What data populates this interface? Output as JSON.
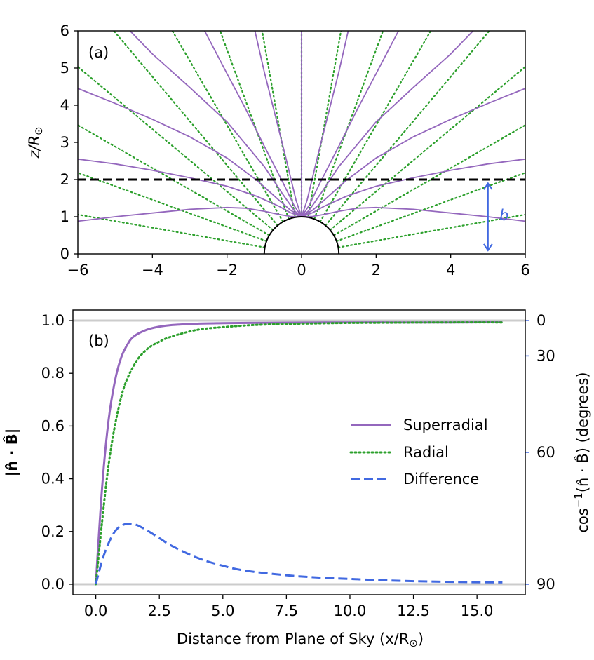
{
  "colors": {
    "superradial": "#9467bd",
    "radial": "#2ca02c",
    "difference": "#4169e1",
    "gray": "#cccccc",
    "black": "#000000"
  },
  "chart_data": [
    {
      "panel": "(a)",
      "type": "line",
      "ylabel_main": "z/R",
      "ylabel_sub": "⊙",
      "xlim": [
        -6,
        6
      ],
      "ylim": [
        0,
        6
      ],
      "xticks": [
        "−6",
        "−4",
        "−2",
        "0",
        "2",
        "4",
        "6"
      ],
      "yticks": [
        "0",
        "1",
        "2",
        "3",
        "4",
        "5",
        "6"
      ],
      "xtick_values": [
        -6,
        -4,
        -2,
        0,
        2,
        4,
        6
      ],
      "ytick_values": [
        0,
        1,
        2,
        3,
        4,
        5,
        6
      ],
      "dashed_line_z": 2,
      "sun_radius": 1,
      "b_label": "b",
      "b_arrow_x": 5,
      "b_arrow_range": [
        0.02,
        1.9
      ],
      "superradial_series": [
        {
          "name": "fieldline-r1",
          "x": [
            -6,
            -5,
            -4,
            -3,
            -2,
            -1.5,
            -1,
            -0.6,
            -0.3,
            0
          ],
          "y": [
            0.88,
            1.0,
            1.1,
            1.2,
            1.25,
            1.23,
            1.15,
            1.06,
            1.01,
            1.0
          ]
        },
        {
          "name": "fieldline-r2",
          "x": [
            -6,
            -5,
            -4,
            -3,
            -2,
            -1.2,
            -0.6,
            -0.3,
            0
          ],
          "y": [
            2.55,
            2.42,
            2.25,
            2.05,
            1.82,
            1.55,
            1.28,
            1.11,
            1.0
          ]
        },
        {
          "name": "fieldline-r3",
          "x": [
            -6,
            -5,
            -4,
            -3,
            -2,
            -1.2,
            -0.6,
            -0.3,
            0
          ],
          "y": [
            4.45,
            4.05,
            3.62,
            3.15,
            2.58,
            1.98,
            1.44,
            1.18,
            1.0
          ]
        },
        {
          "name": "fieldline-r4",
          "x": [
            -4.6,
            -4,
            -3,
            -2,
            -1,
            -0.5,
            -0.2,
            0
          ],
          "y": [
            6.0,
            5.38,
            4.48,
            3.55,
            2.35,
            1.6,
            1.17,
            1.0
          ]
        },
        {
          "name": "fieldline-r5",
          "x": [
            -2.6,
            -2,
            -1.5,
            -1,
            -0.5,
            -0.2,
            0
          ],
          "y": [
            6.0,
            4.85,
            3.9,
            2.9,
            1.92,
            1.3,
            1.0
          ]
        },
        {
          "name": "fieldline-r6",
          "x": [
            -1.25,
            -1,
            -0.7,
            -0.4,
            -0.15,
            0
          ],
          "y": [
            6.0,
            4.9,
            3.7,
            2.5,
            1.45,
            1.0
          ]
        },
        {
          "name": "fieldline-r7",
          "x": [
            0,
            0
          ],
          "y": [
            1.0,
            6.0
          ]
        }
      ],
      "radial_angles_deg": [
        10,
        20,
        30,
        40,
        50,
        60,
        70,
        80,
        90,
        100,
        110,
        120,
        130,
        140,
        150,
        160,
        170
      ]
    },
    {
      "panel": "(b)",
      "type": "line",
      "xlabel_main": "Distance from Plane of Sky (x/R",
      "xlabel_sub": "⊙",
      "xlabel_end": ")",
      "ylabel_left": "|n̂ · B̂|",
      "ylabel_right_main": "cos",
      "ylabel_right_sup": "−1",
      "ylabel_right_rest": "(n̂ · B̂)  (degrees)",
      "xlim": [
        -0.9,
        16.9
      ],
      "ylim": [
        -0.04,
        1.04
      ],
      "xticks": [
        "0.0",
        "2.5",
        "5.0",
        "7.5",
        "10.0",
        "12.5",
        "15.0"
      ],
      "xtick_values": [
        0,
        2.5,
        5,
        7.5,
        10,
        12.5,
        15
      ],
      "yticks": [
        "0.0",
        "0.2",
        "0.4",
        "0.6",
        "0.8",
        "1.0"
      ],
      "ytick_values": [
        0,
        0.2,
        0.4,
        0.6,
        0.8,
        1.0
      ],
      "right_ticks": [
        "0",
        "30",
        "60",
        "90"
      ],
      "right_tick_degrees": [
        0,
        30,
        60,
        90
      ],
      "legend": [
        "Superradial",
        "Radial",
        "Difference"
      ],
      "series": [
        {
          "name": "Superradial",
          "x": [
            0,
            0.25,
            0.5,
            0.75,
            1,
            1.25,
            1.5,
            2,
            2.5,
            3,
            4,
            5,
            6,
            8,
            10,
            12,
            14,
            16
          ],
          "values": [
            0,
            0.37,
            0.62,
            0.77,
            0.86,
            0.91,
            0.94,
            0.965,
            0.977,
            0.983,
            0.988,
            0.99,
            0.991,
            0.992,
            0.993,
            0.993,
            0.993,
            0.994
          ]
        },
        {
          "name": "Radial",
          "x": [
            0,
            0.5,
            1,
            1.5,
            2,
            2.5,
            3,
            4,
            5,
            6,
            7,
            8,
            10,
            12,
            14,
            16
          ],
          "values": [
            0,
            0.45,
            0.71,
            0.83,
            0.89,
            0.92,
            0.94,
            0.965,
            0.975,
            0.982,
            0.986,
            0.988,
            0.991,
            0.992,
            0.993,
            0.993
          ]
        },
        {
          "name": "Difference",
          "x": [
            0,
            0.25,
            0.5,
            0.75,
            1,
            1.3,
            1.6,
            2,
            2.5,
            3,
            4,
            5,
            6,
            8,
            10,
            12,
            14,
            16
          ],
          "values": [
            0,
            0.09,
            0.155,
            0.2,
            0.222,
            0.23,
            0.225,
            0.205,
            0.175,
            0.145,
            0.1,
            0.07,
            0.05,
            0.03,
            0.02,
            0.013,
            0.009,
            0.007
          ]
        }
      ]
    }
  ]
}
